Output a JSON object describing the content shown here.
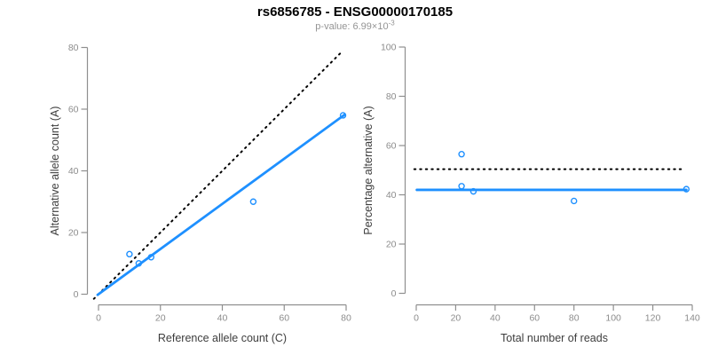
{
  "header": {
    "title": "rs6856785 - ENSG00000170185",
    "subtitle_base": "p-value: 6.99×10",
    "subtitle_exponent": "-3"
  },
  "colors": {
    "accent_blue": "#1E90FF",
    "line_black": "#000000",
    "axis_gray": "#8f8f8f",
    "tick_label_gray": "#8c8c8c",
    "axis_title_gray": "#3d3d3d",
    "subtitle_gray": "#949494",
    "background": "#ffffff"
  },
  "chart_data": [
    {
      "type": "scatter",
      "name": "allele-counts-plot",
      "xlabel": "Reference allele count (C)",
      "ylabel": "Alternative allele count (A)",
      "xlim": [
        0,
        80
      ],
      "ylim": [
        0,
        80
      ],
      "xticks": [
        0,
        20,
        40,
        60,
        80
      ],
      "yticks": [
        0,
        20,
        40,
        60,
        80
      ],
      "grid": false,
      "legend": null,
      "points": [
        [
          10,
          13
        ],
        [
          13,
          10
        ],
        [
          17,
          12
        ],
        [
          50,
          30
        ],
        [
          79,
          58
        ]
      ],
      "lines": [
        {
          "name": "identity-line",
          "style": "dotted",
          "color": "#000000",
          "x": [
            -1.5,
            79.0
          ],
          "y": [
            -1.5,
            79.0
          ]
        },
        {
          "name": "fit-line",
          "style": "solid",
          "color": "#1E90FF",
          "x": [
            -0.3,
            79.5
          ],
          "y": [
            -0.2,
            58.2
          ]
        }
      ]
    },
    {
      "type": "scatter",
      "name": "percentage-alternative-plot",
      "xlabel": "Total number of reads",
      "ylabel": "Percentage alternative (A)",
      "xlim": [
        0,
        140
      ],
      "ylim": [
        0,
        100
      ],
      "xticks": [
        0,
        20,
        40,
        60,
        80,
        100,
        120,
        140
      ],
      "yticks": [
        0,
        20,
        40,
        60,
        80,
        100
      ],
      "grid": false,
      "legend": null,
      "points": [
        [
          23,
          56.5
        ],
        [
          23,
          43.5
        ],
        [
          29,
          41.4
        ],
        [
          80,
          37.5
        ],
        [
          137,
          42.3
        ]
      ],
      "lines": [
        {
          "name": "null-50-percent-line",
          "style": "dotted",
          "color": "#000000",
          "x": [
            -1.0,
            134.6
          ],
          "y": [
            50.4,
            50.4
          ]
        },
        {
          "name": "fit-line",
          "style": "solid",
          "color": "#1E90FF",
          "x": [
            0.3,
            137.0
          ],
          "y": [
            42.0,
            42.0
          ]
        }
      ]
    }
  ]
}
